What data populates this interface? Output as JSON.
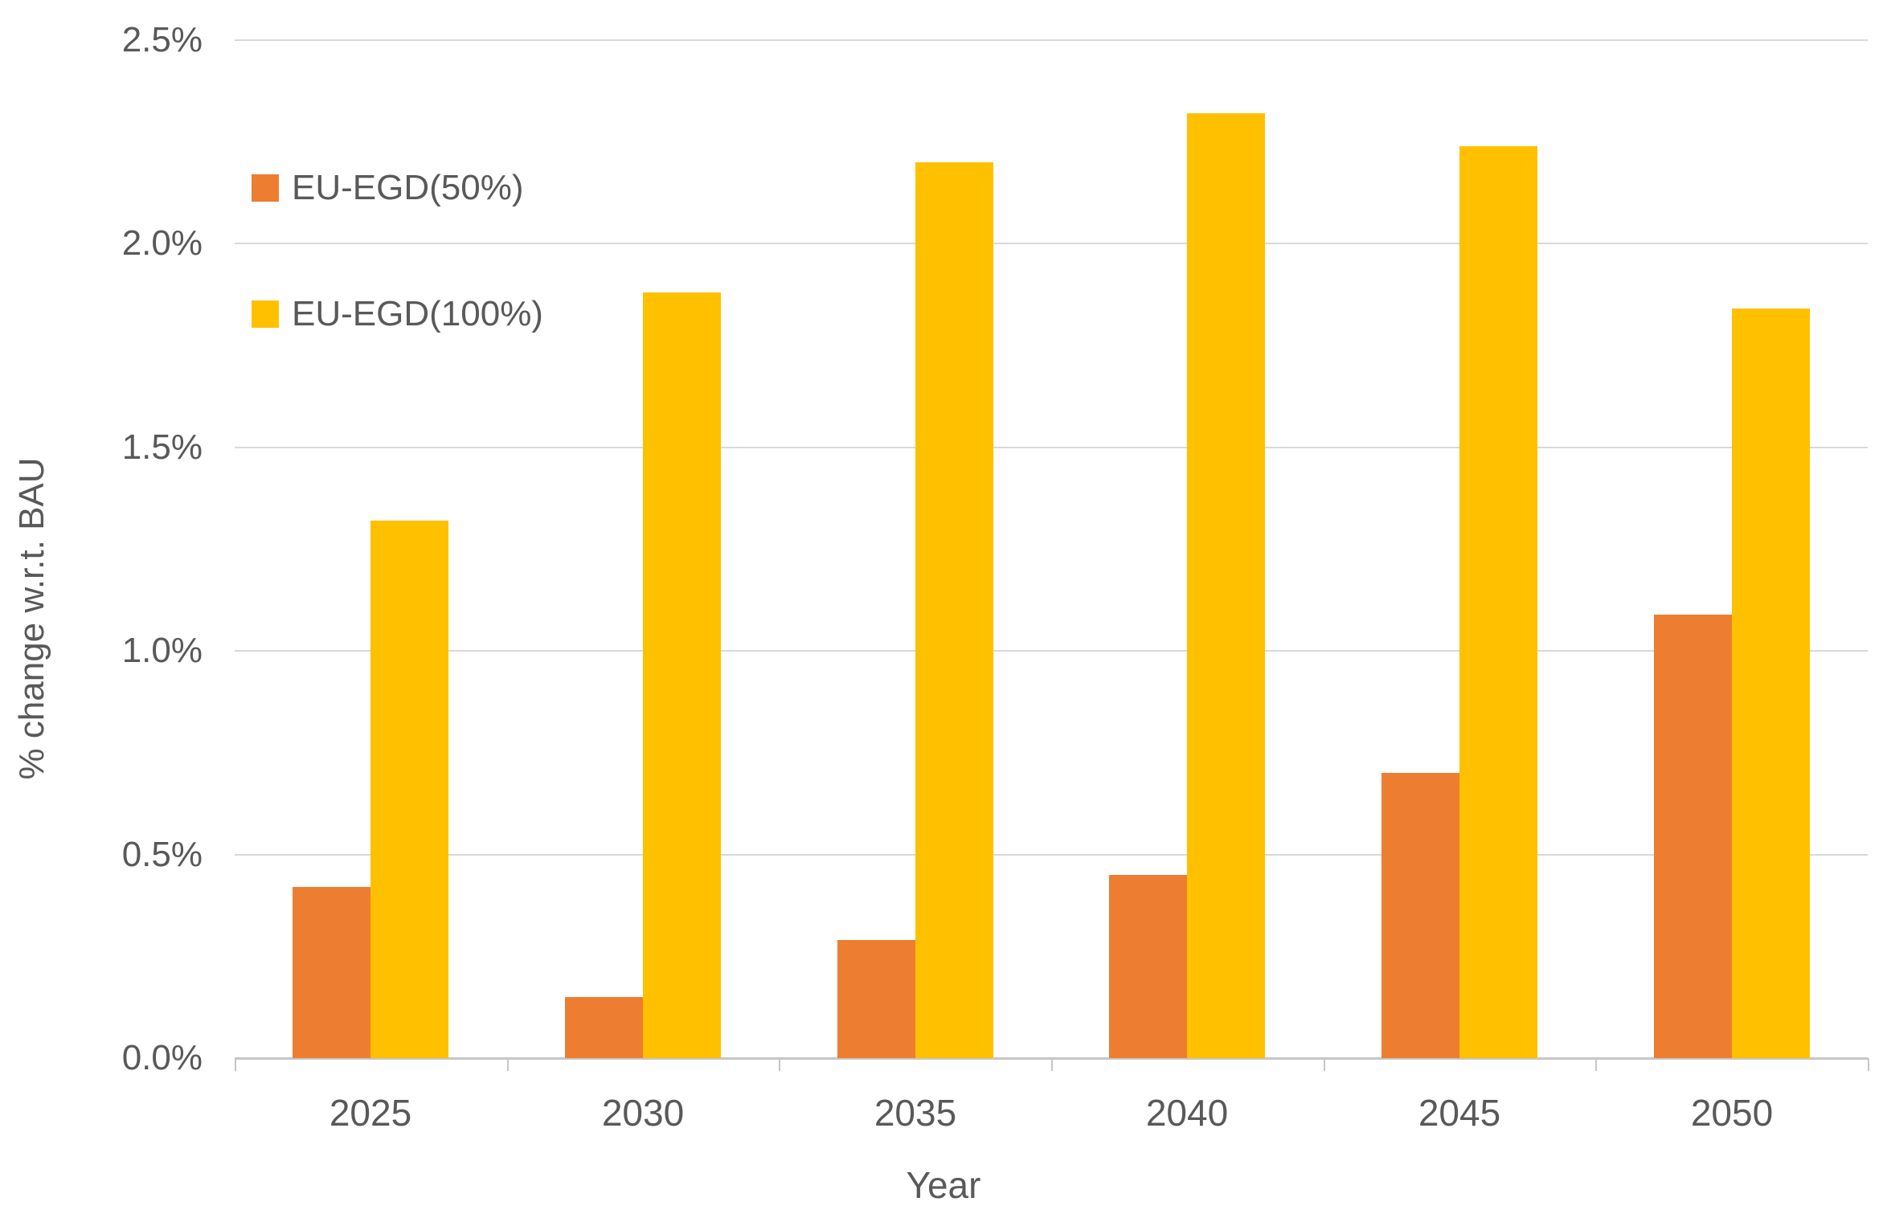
{
  "chart_data": {
    "type": "bar",
    "title": "",
    "xlabel": "Year",
    "ylabel": "% change w.r.t. BAU",
    "categories": [
      "2025",
      "2030",
      "2035",
      "2040",
      "2045",
      "2050"
    ],
    "series": [
      {
        "name": "EU-EGD(50%)",
        "color": "#ED7D31",
        "values": [
          0.42,
          0.15,
          0.29,
          0.45,
          0.7,
          1.09
        ]
      },
      {
        "name": "EU-EGD(100%)",
        "color": "#FFC000",
        "values": [
          1.32,
          1.88,
          2.2,
          2.32,
          2.24,
          1.84
        ]
      }
    ],
    "ylim": [
      0,
      2.5
    ],
    "ytick_step": 0.5,
    "ytick_labels": [
      "0.0%",
      "0.5%",
      "1.0%",
      "1.5%",
      "2.0%",
      "2.5%"
    ],
    "grid": true,
    "legend_position": "top-left-inside",
    "colors": {
      "gridline": "#d9d9d9",
      "axis_line": "#c6c6c6",
      "text": "#595959"
    }
  }
}
